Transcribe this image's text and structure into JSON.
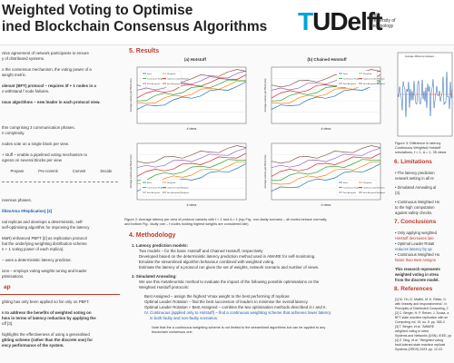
{
  "header": {
    "title_line1": "Weighted Voting to Optimise",
    "title_line2": "ined Blockchain Consensus Algorithms",
    "logo_text": "TUDelft",
    "logo_sub": [
      "Delft",
      "University of",
      "Technology"
    ]
  },
  "left": {
    "intro_lines": [
      "ctive agreement of network participants to ensure",
      "y of distributed systems.",
      "",
      "o the consensus mechanism, the voting power of a",
      "weight metric.",
      "",
      "olerant (BFT) protocol – requires 3f + 1 nodes in a",
      "o withstand f node failures.",
      "",
      "nsus algorithms – new leader in each protocol view."
    ],
    "mid_lines": [
      "thm comprising 3 communication phases.",
      "n complexity.",
      "",
      "nodes vote on a single block per view.",
      "",
      "+ stuff – enable a pipelined voting mechanism to",
      "ogress on several blocks per view"
    ],
    "stages": [
      "Prepare",
      "Pre-commit",
      "Commit"
    ],
    "stage_extra": "Decide",
    "mid2_lines": [
      "nsensus phases.",
      "",
      "ifdexAma #Replication) [2]",
      "",
      "nal replicas and develops a deterministic, self-",
      "self-optimising algorithm for improving the latency",
      "",
      "MaR) enhanced PBFT [2] as replication protocol",
      "hat the underlying weighting distribution scheme",
      "n + 1 voting power of each replica).",
      "",
      "– uses a deterministic latency predictor.",
      "",
      "ions – employs voting weights tuning and leader",
      "ptimisations."
    ],
    "section_gap": "ap",
    "gap_lines": [
      "ghting has only been applied so far only on PBFT.",
      "",
      "n to address the benefits of weighted voting on",
      "hms in terms of latency reduction by applying the",
      "uff [3].",
      "",
      "highlights the effectiveness of using a generalised",
      "ghting scheme (rather than the discrete one) for",
      "ency performance of the system."
    ]
  },
  "results": {
    "section_num": "5.",
    "section_title": "Results",
    "panel_a_title": "(a) Hotstuff",
    "panel_b_title": "(b) Chained Hotstuff",
    "xlabel": "# views",
    "ylabel": "Average Latency per Block (ms)",
    "caption_lines": [
      "Figure 2: Average latency per view of protocol variants with f = 1 and Δ = 1 (top Fig.: non-faulty scenario – all nodes behave normally,",
      "and bottom Fig.: faulty one – f nodes holding highest weights are considered idle)"
    ],
    "legend": [
      "Basic",
      "Weighted",
      "Continuous Weighted",
      "Optimal Leader Rotation",
      "Best Assigned",
      "Best Assigned Weighted"
    ]
  },
  "methodology": {
    "section_num": "4.",
    "section_title": "Methodology",
    "item1": "1.  Latency prediction models:",
    "item1_lines": [
      "Two models – for the basic Hotstuff and Chained Hotstuff, respectively",
      "Developed based on the deterministic latency prediction method used in AWARE for self-monitoring.",
      "Emulate the streamlined algorithm behaviour combined with weighted voting.",
      "Estimate the latency of a protocol run given the set of weights, network scenario and number of views."
    ],
    "item2": "2.  Simulated Annealing:",
    "item2_lines": [
      "We use this metaheuristic method to evaluate the impact of the following possible optimisations on the",
      "Weighted Hotstuff protocols:"
    ],
    "bullets": [
      "Best Assigned – assign the highest Vmax weight to the best performing 2f replicas",
      "Optimal Leader Rotation – find the best succession of leaders to minimise the overall latency.",
      "Optimal Leader Rotation + Best Assigned – combine the two optimisation methods described in I and II.",
      "IV. Continuous (applied only to Hotstuff) – find a continuous weighting scheme that achieves lower latency",
      "in both faulty and non-faulty scenarios."
    ],
    "note": "Note that the a continuous weighting scheme is not limited to the streamlined algorithms but can be applied to any",
    "note2": "blockchain consensus one."
  },
  "right": {
    "fig_label": "Average difference between ...",
    "fig3_caption": [
      "Figure 3: Difference in latency",
      "Continuous Weighted Hotstuff",
      "simulations, f = 1, Δ = 1, 35 views"
    ],
    "limits_num": "6.",
    "limits_title": "Limitations",
    "limits_lines": [
      "• The latency prediction",
      "  network setting in all re",
      "",
      "• Simulated Annealing al",
      "  (3).",
      "",
      "• Continuous Weighted Ho",
      "  to the high computation",
      "  against safety checks."
    ],
    "concl_num": "7.",
    "concl_title": "Conclusions",
    "concl_lines": [
      "• Only applying weighted",
      "  Hotstuff decreases late",
      "• Optimal Leader Rotati",
      "  reduces latency by up",
      "• Continuous Weighted Ho",
      "  faster than Best Assigne",
      "",
      "This research represents",
      "weighted voting in strea",
      "from the discrete model."
    ],
    "refs_num": "8.",
    "refs_title": "References",
    "ref_lines": [
      "[1] M. Yin, D. Malkhi, M. K. Reiter, G.",
      "with linearity and responsiveness\". in",
      "Principles of Distributed Computing, 2",
      "[2] C. Berger, H. P. Reiser, J. Sousa, a",
      "BFT state machine replication with se",
      "Computing vol. 19, no. 5. pp. 365-3",
      "[3] T. Berger, et al. \"AWARE",
      "weighted voting in strea",
      "Systems and Networks (DSN). IEEE, pp",
      "[4] Z. Ding, et al. \"Weighted voting",
      "fault-tolerant state machine replicati",
      "Systems (SRDS) 2023. pp. 12-23."
    ]
  },
  "colors": {
    "accent": "#c0392b",
    "blue": "#1f5fb0",
    "basic": "#1f77b4",
    "weighted": "#ff7f0e",
    "continuous": "#2ca02c",
    "optimal": "#d62728",
    "best": "#9467bd",
    "bestw": "#8c564b"
  }
}
